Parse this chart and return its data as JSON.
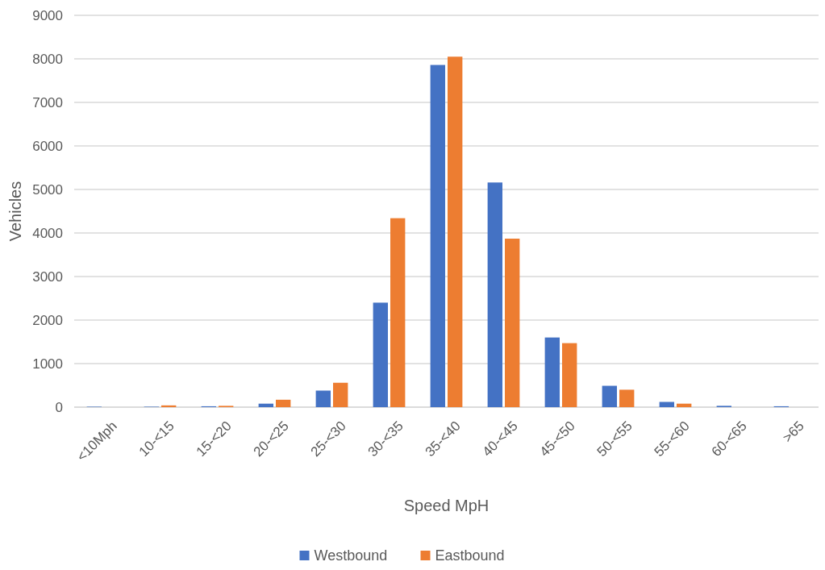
{
  "chart_data": {
    "type": "bar",
    "xlabel": "Speed MpH",
    "ylabel": "Vehicles",
    "categories": [
      "<10Mph",
      "10-<15",
      "15-<20",
      "20-<25",
      "25-<30",
      "30-<35",
      "35-<40",
      "40-<45",
      "45-<50",
      "50-<55",
      "55-<60",
      "60-<65",
      ">65"
    ],
    "series": [
      {
        "name": "Westbound",
        "color": "#4472c4",
        "values": [
          10,
          10,
          20,
          80,
          380,
          2400,
          7860,
          5160,
          1600,
          490,
          120,
          30,
          20
        ]
      },
      {
        "name": "Eastbound",
        "color": "#ed7d31",
        "values": [
          0,
          40,
          30,
          170,
          560,
          4340,
          8050,
          3870,
          1470,
          400,
          80,
          0,
          0
        ]
      }
    ],
    "ylim": [
      0,
      9000
    ],
    "yticks": [
      0,
      1000,
      2000,
      3000,
      4000,
      5000,
      6000,
      7000,
      8000,
      9000
    ],
    "grid": "y",
    "legend": "bottom"
  }
}
